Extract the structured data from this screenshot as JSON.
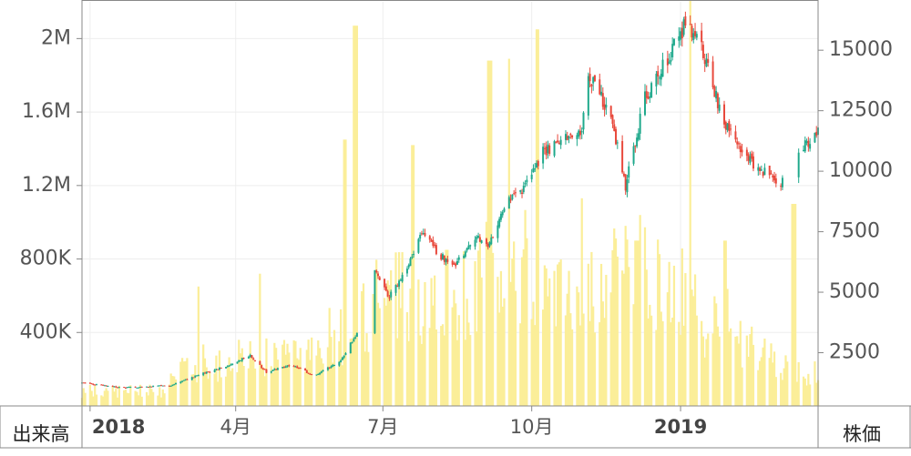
{
  "chart_data": {
    "type": "candlestick_volume",
    "volume_axis": {
      "ticks": [
        400000,
        800000,
        1200000,
        1600000,
        2000000
      ],
      "tick_labels": [
        "400K",
        "800K",
        "1.2M",
        "1.6M",
        "2M"
      ],
      "range": [
        0,
        2200000
      ]
    },
    "price_axis": {
      "ticks": [
        2500,
        5000,
        7500,
        10000,
        12500,
        15000
      ],
      "tick_labels": [
        "2500",
        "5000",
        "7500",
        "10000",
        "12500",
        "15000"
      ],
      "range": [
        300,
        17000
      ]
    },
    "x_ticks": [
      {
        "label": "2018",
        "date": "2018-01-01",
        "year": true
      },
      {
        "label": "4月",
        "date": "2018-04-01",
        "year": false
      },
      {
        "label": "7月",
        "date": "2018-07-01",
        "year": false
      },
      {
        "label": "10月",
        "date": "2018-10-01",
        "year": false
      },
      {
        "label": "2019",
        "date": "2019-01-01",
        "year": true
      }
    ],
    "date_range": [
      "2017-12-27",
      "2019-03-27"
    ],
    "corner_left": "出来高",
    "corner_right": "株価",
    "price_knots": [
      [
        "2017-12-27",
        1250
      ],
      [
        "2018-01-20",
        1050
      ],
      [
        "2018-02-20",
        1150
      ],
      [
        "2018-03-10",
        1600
      ],
      [
        "2018-03-25",
        1900
      ],
      [
        "2018-04-10",
        2400
      ],
      [
        "2018-04-20",
        1700
      ],
      [
        "2018-05-05",
        2000
      ],
      [
        "2018-05-20",
        1550
      ],
      [
        "2018-06-05",
        2200
      ],
      [
        "2018-06-15",
        3300
      ],
      [
        "2018-06-22",
        3000
      ],
      [
        "2018-06-26",
        6000
      ],
      [
        "2018-07-05",
        4800
      ],
      [
        "2018-07-15",
        5800
      ],
      [
        "2018-07-25",
        7500
      ],
      [
        "2018-08-05",
        6500
      ],
      [
        "2018-08-15",
        6200
      ],
      [
        "2018-08-28",
        7200
      ],
      [
        "2018-09-05",
        7000
      ],
      [
        "2018-09-15",
        8600
      ],
      [
        "2018-09-25",
        9200
      ],
      [
        "2018-10-08",
        10800
      ],
      [
        "2018-10-20",
        11200
      ],
      [
        "2018-11-01",
        11800
      ],
      [
        "2018-11-05",
        14000
      ],
      [
        "2018-11-18",
        12500
      ],
      [
        "2018-11-28",
        9400
      ],
      [
        "2018-12-10",
        13000
      ],
      [
        "2018-12-20",
        14200
      ],
      [
        "2019-01-05",
        16200
      ],
      [
        "2019-01-15",
        15000
      ],
      [
        "2019-01-25",
        12500
      ],
      [
        "2019-02-05",
        11000
      ],
      [
        "2019-02-20",
        10000
      ],
      [
        "2019-03-05",
        9600
      ],
      [
        "2019-03-12",
        10300
      ],
      [
        "2019-03-18",
        11000
      ],
      [
        "2019-03-27",
        11700
      ]
    ],
    "price_gaps": [
      [
        "2018-06-18",
        "2018-06-25"
      ],
      [
        "2019-03-06",
        "2019-03-14"
      ]
    ],
    "volume_base": [
      [
        "2017-12-27",
        80000
      ],
      [
        "2018-02-15",
        80000
      ],
      [
        "2018-03-01",
        200000
      ],
      [
        "2018-04-01",
        250000
      ],
      [
        "2018-05-15",
        250000
      ],
      [
        "2018-06-10",
        400000
      ],
      [
        "2018-07-01",
        600000
      ],
      [
        "2018-08-01",
        550000
      ],
      [
        "2018-09-01",
        700000
      ],
      [
        "2018-10-01",
        650000
      ],
      [
        "2018-11-01",
        550000
      ],
      [
        "2018-12-01",
        750000
      ],
      [
        "2019-01-01",
        600000
      ],
      [
        "2019-02-01",
        350000
      ],
      [
        "2019-03-01",
        250000
      ],
      [
        "2019-03-27",
        120000
      ]
    ],
    "volume_spikes": [
      [
        "2018-03-10",
        650000
      ],
      [
        "2018-04-15",
        720000
      ],
      [
        "2018-06-08",
        1450000
      ],
      [
        "2018-06-14",
        2070000
      ],
      [
        "2018-07-20",
        1420000
      ],
      [
        "2018-08-10",
        850000
      ],
      [
        "2018-09-05",
        1880000
      ],
      [
        "2018-09-16",
        1890000
      ],
      [
        "2018-10-05",
        2050000
      ],
      [
        "2018-12-05",
        900000
      ],
      [
        "2019-01-06",
        2220000
      ],
      [
        "2019-01-28",
        900000
      ],
      [
        "2019-03-12",
        1100000
      ]
    ],
    "colors": {
      "up": "#1fa98c",
      "down": "#e8483b",
      "volume": "#fbee99",
      "grid": "#eeeeee",
      "axis": "#888888"
    },
    "grid": true
  }
}
